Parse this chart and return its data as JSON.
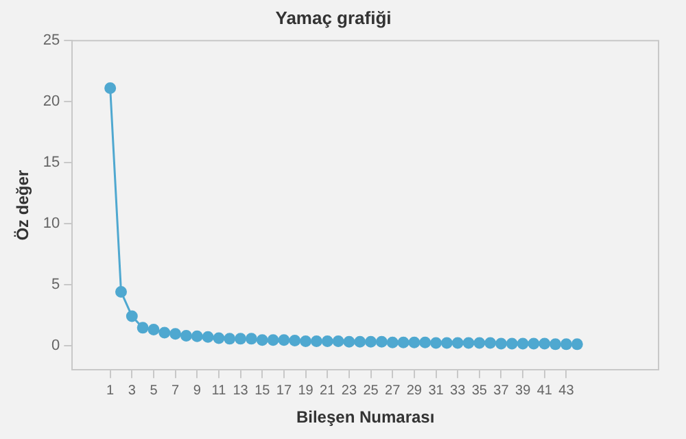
{
  "chart_data": {
    "type": "line",
    "title": "Yamaç grafiği",
    "xlabel": "Bileşen Numarası",
    "ylabel": "Öz değer",
    "x": [
      1,
      2,
      3,
      4,
      5,
      6,
      7,
      8,
      9,
      10,
      11,
      12,
      13,
      14,
      15,
      16,
      17,
      18,
      19,
      20,
      21,
      22,
      23,
      24,
      25,
      26,
      27,
      28,
      29,
      30,
      31,
      32,
      33,
      34,
      35,
      36,
      37,
      38,
      39,
      40,
      41,
      42,
      43,
      44
    ],
    "series": [
      {
        "color": "#4fa8d0",
        "values": [
          21.1,
          4.4,
          2.4,
          1.45,
          1.3,
          1.05,
          0.95,
          0.8,
          0.75,
          0.7,
          0.6,
          0.55,
          0.55,
          0.55,
          0.45,
          0.45,
          0.45,
          0.4,
          0.35,
          0.35,
          0.35,
          0.35,
          0.3,
          0.3,
          0.3,
          0.3,
          0.25,
          0.25,
          0.25,
          0.25,
          0.2,
          0.2,
          0.2,
          0.2,
          0.2,
          0.2,
          0.15,
          0.15,
          0.15,
          0.15,
          0.15,
          0.1,
          0.1,
          0.1
        ]
      }
    ],
    "xlim": [
      -2.5,
      51.5
    ],
    "xticks": [
      1,
      3,
      5,
      7,
      9,
      11,
      13,
      15,
      17,
      19,
      21,
      23,
      25,
      27,
      29,
      31,
      33,
      35,
      37,
      39,
      41,
      43
    ],
    "ylim": [
      -2,
      25
    ],
    "yticks": [
      0,
      5,
      10,
      15,
      20,
      25
    ],
    "grid": false,
    "legend": false,
    "marker": "circle",
    "line_style": "solid"
  }
}
